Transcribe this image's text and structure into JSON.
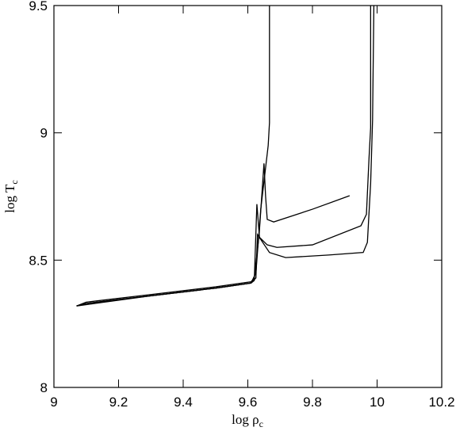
{
  "chart_data": {
    "type": "line",
    "xlabel": "log ρ",
    "xlabel_subscript": "c",
    "ylabel": "log T",
    "ylabel_subscript": "c",
    "xlim": [
      9,
      10.2
    ],
    "xticks": [
      9,
      9.2,
      9.4,
      9.6,
      9.8,
      10,
      10.2
    ],
    "ylim": [
      8,
      9.5
    ],
    "yticks": [
      8,
      8.5,
      9,
      9.5
    ],
    "series": [
      {
        "color": "#000000",
        "x": [
          9.07,
          9.1,
          9.3,
          9.5,
          9.61,
          9.62,
          9.635,
          9.65,
          9.655,
          9.66,
          9.68,
          9.8,
          9.915
        ],
        "values": [
          8.32,
          8.335,
          8.365,
          8.395,
          8.415,
          8.43,
          8.6,
          8.88,
          8.75,
          8.66,
          8.65,
          8.7,
          8.753
        ]
      },
      {
        "color": "#000000",
        "x": [
          9.07,
          9.1,
          9.3,
          9.5,
          9.61,
          9.62,
          9.628,
          9.636,
          9.66,
          9.69,
          9.8,
          9.95,
          9.967,
          9.975,
          9.98,
          9.98
        ],
        "values": [
          8.32,
          8.33,
          8.36,
          8.39,
          8.41,
          8.42,
          8.72,
          8.59,
          8.56,
          8.55,
          8.56,
          8.635,
          8.68,
          8.9,
          9.02,
          9.5
        ]
      },
      {
        "color": "#000000",
        "x": [
          9.07,
          9.1,
          9.3,
          9.5,
          9.61,
          9.625,
          9.63,
          9.667,
          9.717,
          9.85,
          9.957,
          9.97,
          9.98,
          9.986,
          9.99
        ],
        "values": [
          8.32,
          8.33,
          8.36,
          8.39,
          8.41,
          8.43,
          8.6,
          8.53,
          8.51,
          8.52,
          8.53,
          8.57,
          8.8,
          9.05,
          9.5
        ]
      },
      {
        "color": "#000000",
        "x": [
          9.07,
          9.3,
          9.5,
          9.61,
          9.625,
          9.64,
          9.663,
          9.667,
          9.667
        ],
        "values": [
          8.32,
          8.36,
          8.39,
          8.41,
          8.45,
          8.7,
          8.95,
          9.04,
          9.5
        ]
      }
    ]
  }
}
